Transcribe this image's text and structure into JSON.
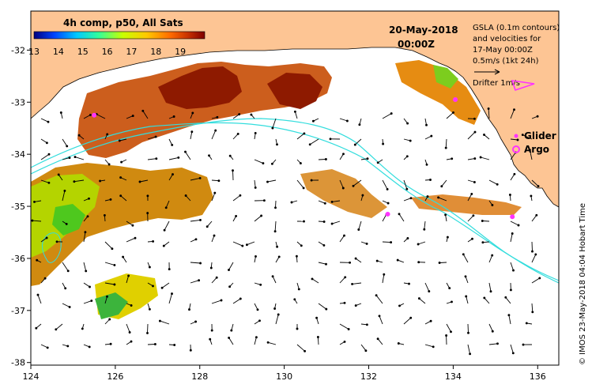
{
  "title": {
    "composite": "4h comp, p50, All Sats",
    "date": "20-May-2018",
    "time": "00:00Z"
  },
  "colorbar": {
    "ticks": [
      "13",
      "14",
      "15",
      "16",
      "17",
      "18",
      "19"
    ],
    "range": [
      13,
      20
    ],
    "colors": [
      "#00007f",
      "#0044ff",
      "#00c8ff",
      "#33ff99",
      "#c8ff00",
      "#ffc800",
      "#ff6a00",
      "#c83200",
      "#7f0000"
    ]
  },
  "legend": {
    "gsla_line1": "GSLA (0.1m contours)",
    "gsla_line2": "and velocities for",
    "gsla_line3": "17-May 00:00Z",
    "scale_label": "0.5m/s (1kt 24h)",
    "drifter_label": "Drifter 1m/s",
    "glider_label": "Glider",
    "argo_label": "Argo"
  },
  "copyright": "© IMOS 23-May-2018 04:04 Hobart Time",
  "axes": {
    "x_ticks": [
      "124",
      "126",
      "128",
      "130",
      "132",
      "134",
      "136"
    ],
    "y_ticks": [
      "-32",
      "-33",
      "-34",
      "-35",
      "-36",
      "-37",
      "-38"
    ],
    "x_range": [
      124,
      136.5
    ],
    "y_range": [
      -31.25,
      -38.05
    ]
  },
  "colors": {
    "land": "#fdc594",
    "ocean": "#ffffff",
    "contour": "#33dddd",
    "marker": "#ff33ff"
  },
  "markers": {
    "gliders": [
      [
        125.5,
        -33.25
      ],
      [
        134.05,
        -32.95
      ],
      [
        132.45,
        -35.15
      ],
      [
        135.4,
        -35.2
      ]
    ],
    "argos": []
  }
}
